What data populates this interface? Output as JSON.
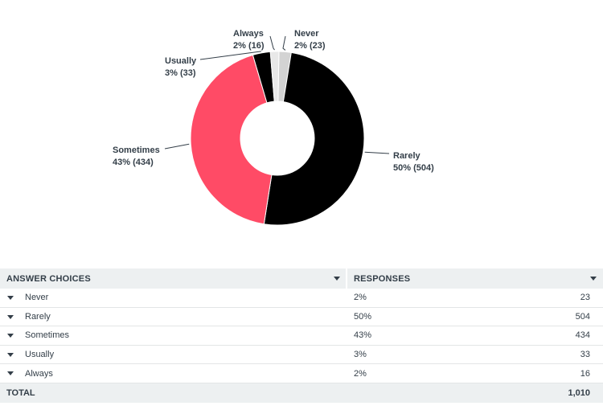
{
  "chart_data": {
    "type": "pie",
    "donut": true,
    "slices": [
      {
        "name": "Never",
        "value": 23,
        "pct_label": "2%",
        "count_label": "23",
        "color": "#d3d3d3"
      },
      {
        "name": "Rarely",
        "value": 504,
        "pct_label": "50%",
        "count_label": "504",
        "color": "#000000"
      },
      {
        "name": "Sometimes",
        "value": 434,
        "pct_label": "43%",
        "count_label": "434",
        "color": "#ff4b66"
      },
      {
        "name": "Usually",
        "value": 33,
        "pct_label": "3%",
        "count_label": "33",
        "color": "#000000"
      },
      {
        "name": "Always",
        "value": 16,
        "pct_label": "2%",
        "count_label": "16",
        "color": "#e8e8e8"
      }
    ],
    "callouts": [
      {
        "name": "Never",
        "line1": "Never",
        "line2": "2% (23)"
      },
      {
        "name": "Rarely",
        "line1": "Rarely",
        "line2": "50% (504)"
      },
      {
        "name": "Sometimes",
        "line1": "Sometimes",
        "line2": "43% (434)"
      },
      {
        "name": "Usually",
        "line1": "Usually",
        "line2": "3% (33)"
      },
      {
        "name": "Always",
        "line1": "Always",
        "line2": "2% (16)"
      }
    ]
  },
  "table": {
    "header": {
      "choices": "ANSWER CHOICES",
      "responses": "RESPONSES"
    },
    "rows": [
      {
        "choice": "Never",
        "pct": "2%",
        "count": "23"
      },
      {
        "choice": "Rarely",
        "pct": "50%",
        "count": "504"
      },
      {
        "choice": "Sometimes",
        "pct": "43%",
        "count": "434"
      },
      {
        "choice": "Usually",
        "pct": "3%",
        "count": "33"
      },
      {
        "choice": "Always",
        "pct": "2%",
        "count": "16"
      }
    ],
    "total": {
      "label": "TOTAL",
      "count": "1,010"
    }
  }
}
